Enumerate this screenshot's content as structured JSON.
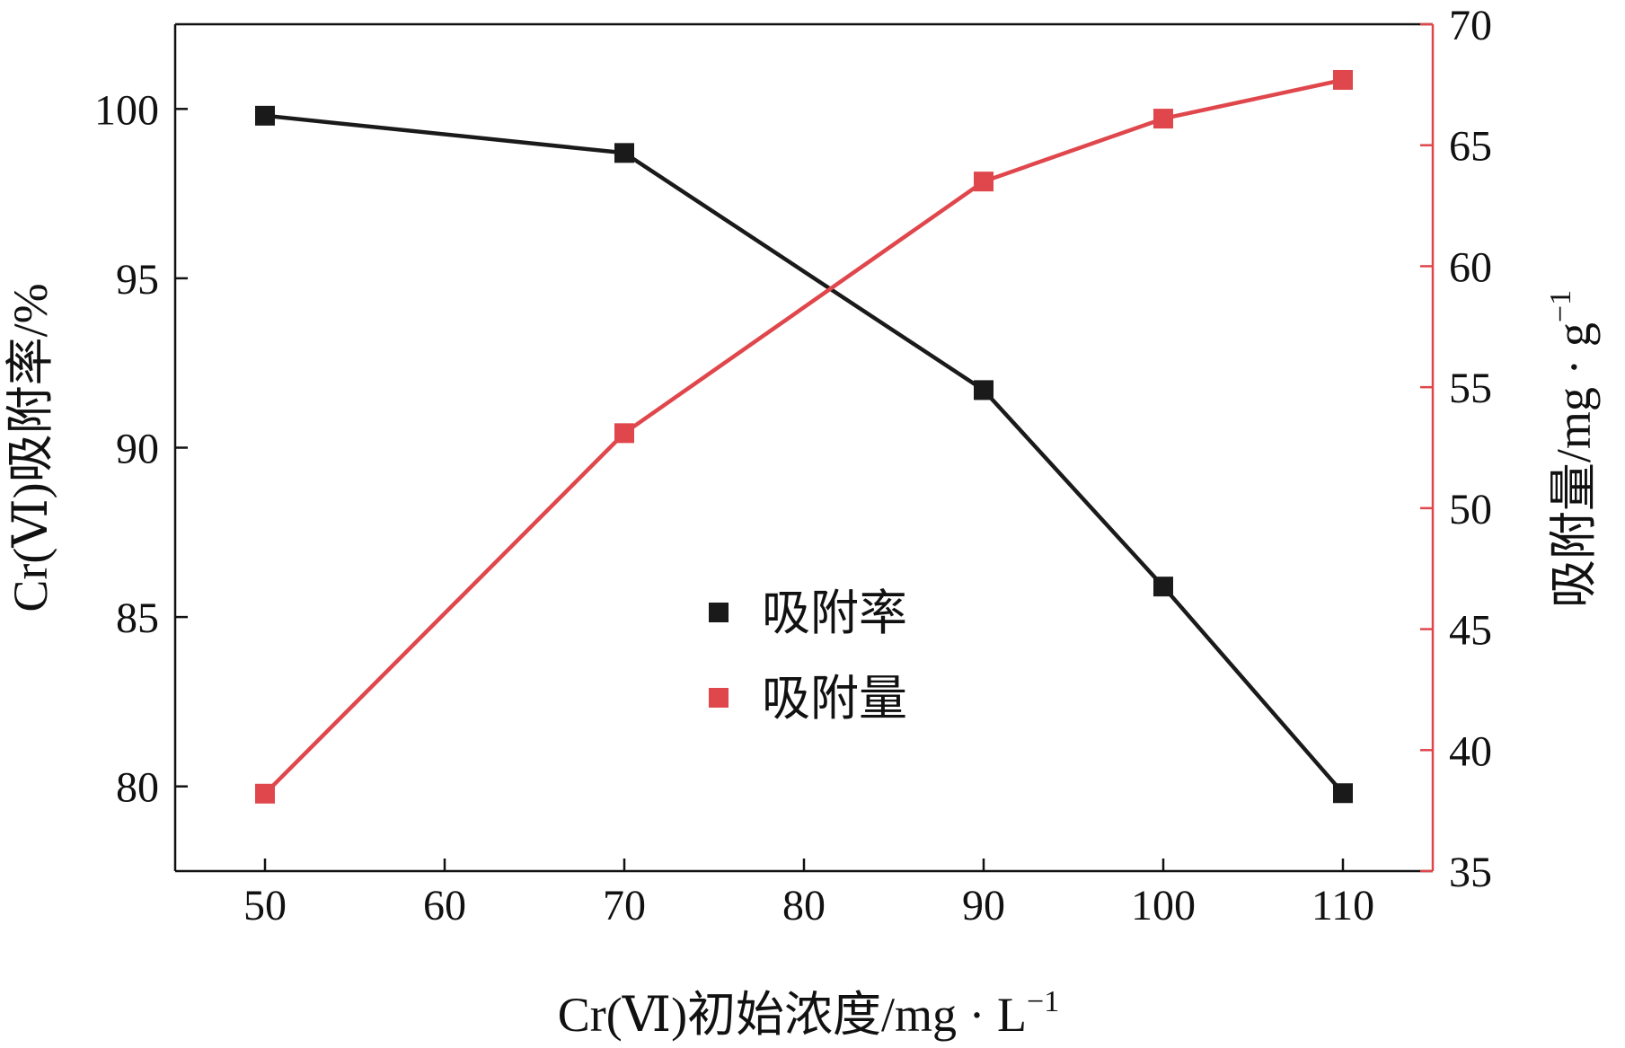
{
  "chart_data": {
    "type": "line",
    "x": [
      50,
      70,
      90,
      100,
      110
    ],
    "xlabel": "Cr(Ⅵ)初始浓度/mg · L",
    "xlabel_sup": "−1",
    "ylabel_left": "Cr(Ⅵ)吸附率/%",
    "ylabel_right": "吸附量/mg · g",
    "ylabel_right_sup": "−1",
    "xlim": [
      45,
      115
    ],
    "ylim_left": [
      77.5,
      102.5
    ],
    "ylim_right": [
      35,
      70
    ],
    "x_ticks": [
      50,
      60,
      70,
      80,
      90,
      100,
      110
    ],
    "x_tick_labels": [
      "50",
      "60",
      "70",
      "80",
      "90",
      "100",
      "110"
    ],
    "y_left_ticks": [
      80,
      85,
      90,
      95,
      100
    ],
    "y_left_tick_labels": [
      "80",
      "85",
      "90",
      "95",
      "100"
    ],
    "y_right_ticks": [
      35,
      40,
      45,
      50,
      55,
      60,
      65,
      70
    ],
    "y_right_tick_labels": [
      "35",
      "40",
      "45",
      "50",
      "55",
      "60",
      "65",
      "70"
    ],
    "legend_position": "center",
    "series": [
      {
        "name": "吸附率",
        "axis": "left",
        "color": "#1a1a1a",
        "values": [
          99.8,
          98.7,
          91.7,
          85.9,
          79.8
        ]
      },
      {
        "name": "吸附量",
        "axis": "right",
        "color": "#e0474c",
        "values": [
          38.2,
          53.1,
          63.5,
          66.1,
          67.7
        ]
      }
    ]
  }
}
